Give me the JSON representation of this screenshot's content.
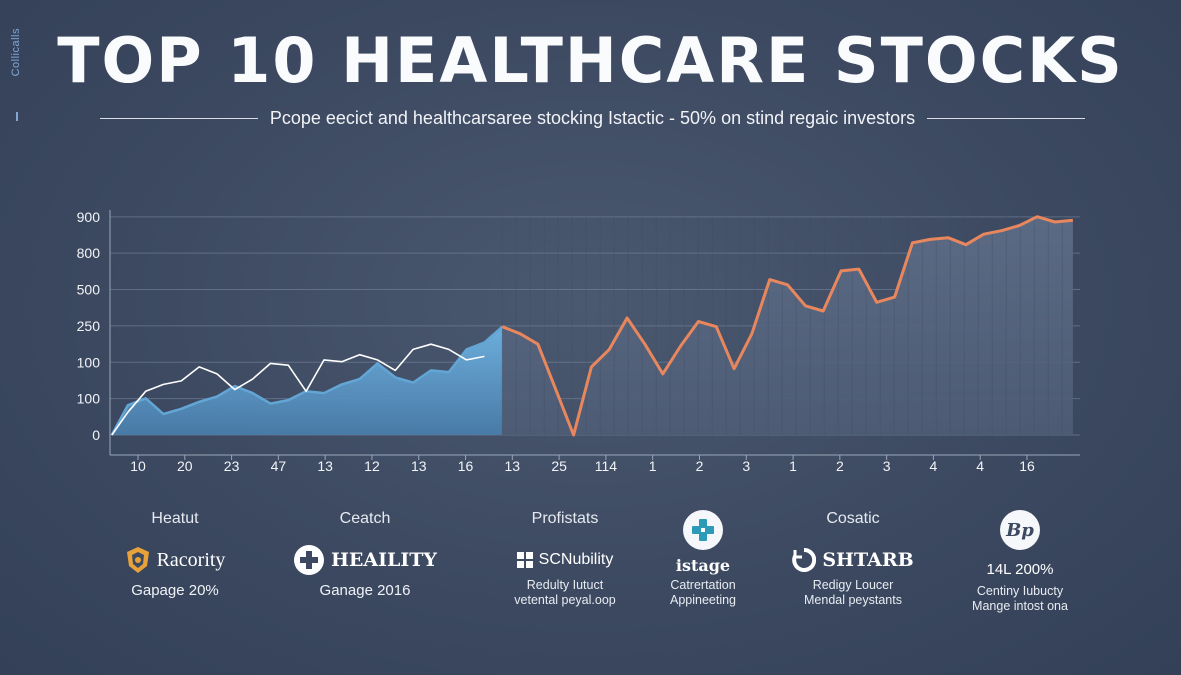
{
  "side_label": "Collicalls",
  "header": {
    "title": "TOP 10 HEALTHCARE STOCKS",
    "subtitle": "Pcope eecict and healthcarsaree stocking Istactic - 50% on stind regaic investors"
  },
  "chart_data": {
    "type": "area",
    "title": "TOP 10 HEALTHCARE STOCKS",
    "subtitle": "Pcope eecict and healthcarsaree stocking Istactic - 50% on stind regaic investors",
    "y_tick_labels": [
      "0",
      "100",
      "100",
      "250",
      "500",
      "800",
      "900"
    ],
    "x_tick_labels": [
      "10",
      "20",
      "23",
      "47",
      "13",
      "12",
      "13",
      "16",
      "13",
      "25",
      "114",
      "1",
      "2",
      "3",
      "1",
      "2",
      "3",
      "4",
      "4",
      "16"
    ],
    "grid": true,
    "legend": "none",
    "colors": {
      "blue": "#63a6d6",
      "orange": "#e8875d",
      "white_line": "#ffffff",
      "fill_dark": "#56657f"
    },
    "series": [
      {
        "color": "#63a6d6",
        "points": [
          [
            0.05,
            0
          ],
          [
            0.5,
            0.85
          ],
          [
            1.0,
            1.05
          ],
          [
            1.5,
            0.6
          ],
          [
            2.0,
            0.75
          ],
          [
            2.5,
            0.95
          ],
          [
            3.0,
            1.1
          ],
          [
            3.5,
            1.4
          ],
          [
            4.0,
            1.2
          ],
          [
            4.5,
            0.9
          ],
          [
            5.0,
            1.0
          ],
          [
            5.5,
            1.25
          ],
          [
            6.0,
            1.2
          ],
          [
            6.5,
            1.45
          ],
          [
            7.0,
            1.6
          ],
          [
            7.5,
            2.05
          ],
          [
            8.0,
            1.65
          ],
          [
            8.5,
            1.5
          ],
          [
            9.0,
            1.85
          ],
          [
            9.5,
            1.8
          ],
          [
            10.0,
            2.45
          ],
          [
            10.5,
            2.65
          ],
          [
            11.0,
            3.1
          ]
        ]
      },
      {
        "color": "#ffffff",
        "points": [
          [
            0.05,
            0
          ],
          [
            0.5,
            0.65
          ],
          [
            1.0,
            1.25
          ],
          [
            1.5,
            1.45
          ],
          [
            2.0,
            1.55
          ],
          [
            2.5,
            1.95
          ],
          [
            3.0,
            1.75
          ],
          [
            3.5,
            1.3
          ],
          [
            4.0,
            1.6
          ],
          [
            4.5,
            2.05
          ],
          [
            5.0,
            2.0
          ],
          [
            5.5,
            1.25
          ],
          [
            6.0,
            2.15
          ],
          [
            6.5,
            2.1
          ],
          [
            7.0,
            2.3
          ],
          [
            7.5,
            2.15
          ],
          [
            8.0,
            1.85
          ],
          [
            8.5,
            2.45
          ],
          [
            9.0,
            2.6
          ],
          [
            9.5,
            2.45
          ],
          [
            10.0,
            2.15
          ],
          [
            10.5,
            2.25
          ]
        ]
      },
      {
        "color": "#e8875d",
        "points": [
          [
            11.0,
            3.1
          ],
          [
            11.5,
            2.9
          ],
          [
            12.0,
            2.6
          ],
          [
            12.5,
            1.3
          ],
          [
            13.0,
            0
          ],
          [
            13.5,
            1.95
          ],
          [
            14.0,
            2.45
          ],
          [
            14.5,
            3.35
          ],
          [
            15.0,
            2.6
          ],
          [
            15.5,
            1.75
          ],
          [
            16.0,
            2.55
          ],
          [
            16.5,
            3.25
          ],
          [
            17.0,
            3.1
          ],
          [
            17.5,
            1.9
          ],
          [
            18.0,
            2.9
          ],
          [
            18.5,
            4.45
          ],
          [
            19.0,
            4.3
          ],
          [
            19.5,
            3.7
          ],
          [
            20.0,
            3.55
          ],
          [
            20.5,
            4.7
          ],
          [
            21.0,
            4.75
          ],
          [
            21.5,
            3.8
          ],
          [
            22.0,
            3.95
          ],
          [
            22.5,
            5.5
          ],
          [
            23.0,
            5.6
          ],
          [
            23.5,
            5.65
          ],
          [
            24.0,
            5.45
          ],
          [
            24.5,
            5.75
          ],
          [
            25.0,
            5.85
          ],
          [
            25.5,
            6.0
          ],
          [
            26.0,
            6.25
          ],
          [
            26.5,
            6.1
          ],
          [
            27.0,
            6.15
          ]
        ]
      }
    ],
    "x_range": [
      0,
      27.2
    ],
    "y_range": [
      0,
      6.3
    ]
  },
  "cards": [
    {
      "category": "Heatut",
      "brand": "Racority",
      "line1": "Gapage 20%",
      "line2": "",
      "line3": ""
    },
    {
      "category": "Ceatch",
      "brand": "HEAILITY",
      "line1": "Ganage 2016",
      "line2": "",
      "line3": ""
    },
    {
      "category": "Profistats",
      "brand": "SCNubility",
      "line1": "",
      "line2": "Redulty Iutuct",
      "line3": "vetental peyal.oop"
    },
    {
      "category": "",
      "brand": "istage",
      "line1": "",
      "line2": "Catrertation",
      "line3": "Appineeting"
    },
    {
      "category": "Cosatic",
      "brand": "SHTARB",
      "line1": "",
      "line2": "Redigy Loucer",
      "line3": "Mendal peystants"
    },
    {
      "category": "",
      "brand": "14L 200%",
      "line1": "",
      "line2": "Centiny Iubucty",
      "line3": "Mange intost ona"
    }
  ],
  "logo_letters": "Bp"
}
